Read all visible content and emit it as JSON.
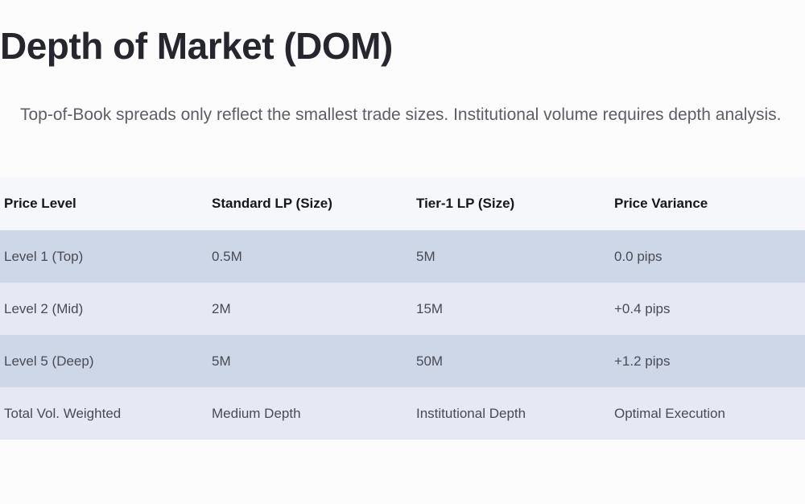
{
  "title": "Depth of Market (DOM)",
  "intro": "Top-of-Book spreads only reflect the smallest trade sizes. Institutional volume requires depth analysis.",
  "table": {
    "headers": [
      "Price Level",
      "Standard LP (Size)",
      "Tier-1 LP (Size)",
      "Price Variance"
    ],
    "rows": [
      [
        "Level 1 (Top)",
        "0.5M",
        "5M",
        "0.0 pips"
      ],
      [
        "Level 2 (Mid)",
        "2M",
        "15M",
        "+0.4 pips"
      ],
      [
        "Level 5 (Deep)",
        "5M",
        "50M",
        "+1.2 pips"
      ],
      [
        "Total Vol. Weighted",
        "Medium Depth",
        "Institutional Depth",
        "Optimal Execution"
      ]
    ]
  }
}
